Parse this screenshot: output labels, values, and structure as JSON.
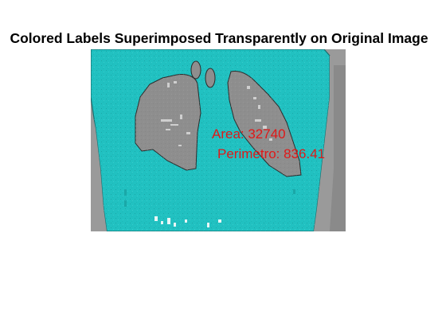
{
  "figure": {
    "title": "Colored Labels Superimposed Transparently on Original Image"
  },
  "image": {
    "overlay_color": "#21c1c1",
    "lung_color": "#8e8e8e",
    "background_color": "#9a9a9a",
    "edge_color": "#1a6d6d"
  },
  "annotations": {
    "area_text": "Area: 32740",
    "perimeter_text": "Perimetro: 836.41",
    "color": "#e01818"
  }
}
